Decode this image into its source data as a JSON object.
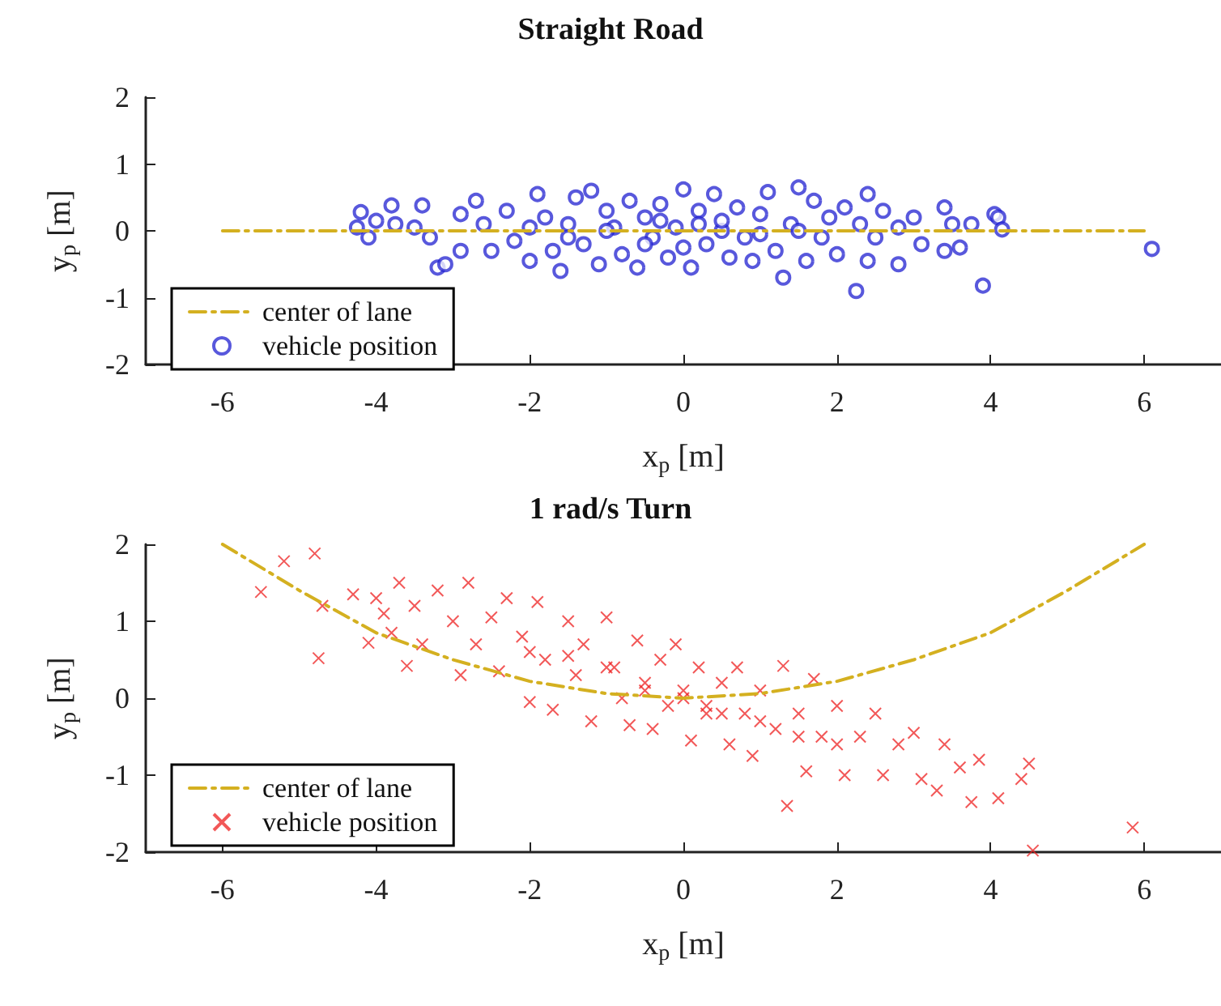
{
  "chart_data": [
    {
      "type": "scatter",
      "title": "Straight Road",
      "xlabel": "x$_{p}$ [m]",
      "ylabel": "y$_{p}$ [m]",
      "xlim": [
        -7,
        7
      ],
      "xticks": [
        -6,
        -4,
        -2,
        0,
        2,
        4,
        6
      ],
      "ylim": [
        -2,
        2
      ],
      "yticks": [
        -2,
        -1,
        0,
        1,
        2
      ],
      "grid": false,
      "legend": "bottom left",
      "series": [
        {
          "name": "center of lane",
          "type": "line",
          "color": "#d4b020",
          "line_style": "dashed",
          "marker": "none",
          "x": [
            -6,
            6
          ],
          "values": [
            0,
            0
          ]
        },
        {
          "name": "vehicle position",
          "color": "#2020d0",
          "marker": "circle",
          "x": [
            -4.2,
            -4.0,
            -4.1,
            -4.25,
            -3.8,
            -3.75,
            -3.4,
            -3.3,
            -3.2,
            -3.1,
            -3.5,
            -2.9,
            -2.9,
            -2.7,
            -2.6,
            -2.5,
            -2.3,
            -2.2,
            -2.0,
            -1.9,
            -1.8,
            -1.7,
            -1.6,
            -1.5,
            -1.4,
            -1.3,
            -1.2,
            -1.1,
            -1.0,
            -0.9,
            -0.8,
            -0.7,
            -0.6,
            -0.5,
            -0.4,
            -0.3,
            -0.2,
            -0.1,
            0,
            0.1,
            0.2,
            0.3,
            0.4,
            0.5,
            0.6,
            0.7,
            0.8,
            0.9,
            1.0,
            1.1,
            1.2,
            1.3,
            1.4,
            1.5,
            1.6,
            1.7,
            1.8,
            1.9,
            2.0,
            2.1,
            2.25,
            2.3,
            2.4,
            2.4,
            2.5,
            2.6,
            2.8,
            2.8,
            3.0,
            3.1,
            3.4,
            3.4,
            3.5,
            3.6,
            3.75,
            3.9,
            4.05,
            4.1,
            4.15,
            6.1,
            -1,
            -0.5,
            0.5,
            1,
            -1.5,
            0,
            0.2,
            -0.3,
            1.5,
            -2
          ],
          "values": [
            0.28,
            0.15,
            -0.1,
            0.05,
            0.38,
            0.1,
            0.38,
            -0.1,
            -0.55,
            -0.5,
            0.05,
            0.25,
            -0.3,
            0.45,
            0.1,
            -0.3,
            0.3,
            -0.15,
            -0.45,
            0.55,
            0.2,
            -0.3,
            -0.6,
            0.1,
            0.5,
            -0.2,
            0.6,
            -0.5,
            0.3,
            0.05,
            -0.35,
            0.45,
            -0.55,
            0.2,
            -0.1,
            0.4,
            -0.4,
            0.05,
            0.62,
            -0.55,
            0.3,
            -0.2,
            0.55,
            0.0,
            -0.4,
            0.35,
            -0.1,
            -0.45,
            0.25,
            0.58,
            -0.3,
            -0.7,
            0.1,
            0.65,
            -0.45,
            0.45,
            -0.1,
            0.2,
            -0.35,
            0.35,
            -0.9,
            0.1,
            0.55,
            -0.45,
            -0.1,
            0.3,
            -0.5,
            0.05,
            0.2,
            -0.2,
            0.35,
            -0.3,
            0.1,
            -0.25,
            0.1,
            -0.82,
            0.25,
            0.2,
            0.02,
            -0.27,
            0,
            -0.2,
            0.15,
            -0.05,
            -0.1,
            -0.25,
            0.1,
            0.15,
            0.0,
            0.05
          ]
        }
      ]
    },
    {
      "type": "scatter",
      "title": "1 rad/s Turn",
      "xlabel": "x$_{p}$ [m]",
      "ylabel": "y$_{p}$ [m]",
      "xlim": [
        -7,
        7
      ],
      "xticks": [
        -6,
        -4,
        -2,
        0,
        2,
        4,
        6
      ],
      "ylim": [
        -2,
        2
      ],
      "yticks": [
        -2,
        -1,
        0,
        1,
        2
      ],
      "grid": false,
      "legend": "bottom left",
      "series": [
        {
          "name": "center of lane",
          "type": "line",
          "color": "#d4b020",
          "line_style": "dashed",
          "marker": "none",
          "x": [
            -6,
            -5,
            -4,
            -3,
            -2,
            -1,
            0,
            1,
            2,
            3,
            4,
            5,
            6
          ],
          "values": [
            2,
            1.4,
            0.85,
            0.5,
            0.22,
            0.06,
            0,
            0.06,
            0.22,
            0.5,
            0.85,
            1.4,
            2
          ]
        },
        {
          "name": "vehicle position",
          "color": "#ee2020",
          "marker": "cross",
          "x": [
            -5.5,
            -5.2,
            -4.8,
            -4.75,
            -4.7,
            -4.3,
            -4.1,
            -4.0,
            -3.9,
            -3.8,
            -3.7,
            -3.6,
            -3.5,
            -3.4,
            -3.2,
            -3.0,
            -2.9,
            -2.8,
            -2.7,
            -2.5,
            -2.4,
            -2.3,
            -2.1,
            -2.0,
            -1.9,
            -1.8,
            -1.7,
            -1.5,
            -1.4,
            -1.3,
            -1.2,
            -1.0,
            -0.9,
            -0.8,
            -0.7,
            -0.6,
            -0.5,
            -0.4,
            -0.3,
            -0.2,
            -0.1,
            0,
            0.1,
            0.2,
            0.3,
            0.5,
            0.6,
            0.7,
            0.8,
            0.9,
            1.0,
            1.2,
            1.3,
            1.35,
            1.5,
            1.6,
            1.7,
            1.8,
            2.0,
            2.1,
            2.3,
            2.5,
            2.6,
            2.8,
            3.0,
            3.1,
            3.3,
            3.4,
            3.6,
            3.75,
            3.85,
            4.1,
            4.4,
            4.5,
            4.55,
            5.85,
            -1,
            0,
            0.5,
            -0.5,
            1,
            -1.5,
            1.5,
            2,
            -2,
            0.3
          ],
          "values": [
            1.38,
            1.78,
            1.88,
            0.52,
            1.2,
            1.35,
            0.72,
            1.3,
            1.1,
            0.85,
            1.5,
            0.42,
            1.2,
            0.7,
            1.4,
            1.0,
            0.3,
            1.5,
            0.7,
            1.05,
            0.35,
            1.3,
            0.8,
            -0.05,
            1.25,
            0.5,
            -0.15,
            1.0,
            0.3,
            0.7,
            -0.3,
            1.05,
            0.4,
            0.0,
            -0.35,
            0.75,
            0.2,
            -0.4,
            0.5,
            -0.1,
            0.7,
            0.1,
            -0.55,
            0.4,
            -0.2,
            0.2,
            -0.6,
            0.4,
            -0.2,
            -0.75,
            0.1,
            -0.4,
            0.42,
            -1.4,
            -0.2,
            -0.95,
            0.25,
            -0.5,
            -0.1,
            -1.0,
            -0.5,
            -0.2,
            -1.0,
            -0.6,
            -0.45,
            -1.05,
            -1.2,
            -0.6,
            -0.9,
            -1.35,
            -0.8,
            -1.3,
            -1.05,
            -0.85,
            -1.98,
            -1.68,
            0.4,
            0,
            -0.2,
            0.1,
            -0.3,
            0.55,
            -0.5,
            -0.6,
            0.6,
            -0.1
          ]
        }
      ]
    }
  ]
}
